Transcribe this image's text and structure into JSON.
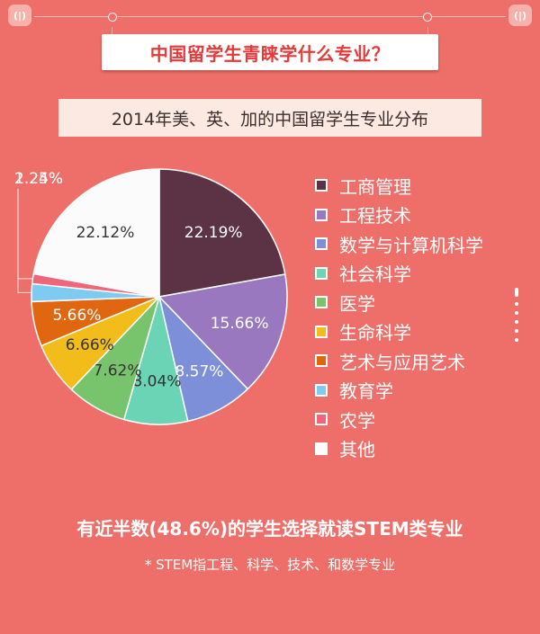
{
  "header": {
    "badge_left": "(|)",
    "badge_right": "(|)",
    "headline": "中国留学生青睐学什么专业？"
  },
  "colors": {
    "background": "#ee6f69",
    "headline_text": "#e6393a"
  },
  "chart_data": {
    "type": "pie",
    "title": "2014年美、英、加的中国留学生专业分布",
    "slices": [
      {
        "label": "工商管理",
        "value": 22.19,
        "display": "22.19%",
        "color": "#5c3245"
      },
      {
        "label": "工程技术",
        "value": 15.66,
        "display": "15.66%",
        "color": "#9a78c0"
      },
      {
        "label": "数学与计算机科学",
        "value": 8.57,
        "display": "8.57%",
        "color": "#7c8fd8"
      },
      {
        "label": "社会科学",
        "value": 8.04,
        "display": "8.04%",
        "color": "#6ad4b4"
      },
      {
        "label": "医学",
        "value": 7.62,
        "display": "7.62%",
        "color": "#78c46c"
      },
      {
        "label": "生命科学",
        "value": 6.66,
        "display": "6.66%",
        "color": "#f2bc1a"
      },
      {
        "label": "艺术与应用艺术",
        "value": 5.66,
        "display": "5.66%",
        "color": "#e0670f"
      },
      {
        "label": "教育学",
        "value": 2.24,
        "display": "2.24%",
        "color": "#7fcaf0"
      },
      {
        "label": "农学",
        "value": 1.25,
        "display": "1.25%",
        "color": "#f0657a"
      },
      {
        "label": "其他",
        "value": 22.12,
        "display": "22.12%",
        "color": "#fbfbfb"
      }
    ]
  },
  "footer": {
    "summary": "有近半数(48.6%)的学生选择就读STEM类专业",
    "note": "* STEM指工程、科学、技术、和数学专业"
  }
}
